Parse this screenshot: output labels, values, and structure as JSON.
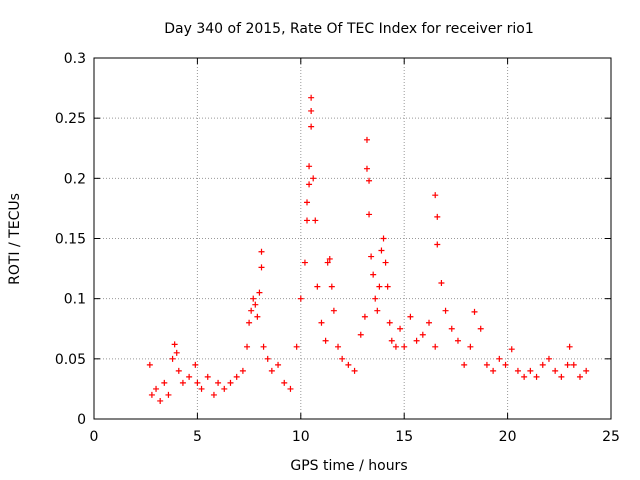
{
  "chart_data": {
    "type": "scatter",
    "title": "Day 340 of 2015, Rate Of TEC Index for receiver rio1",
    "xlabel": "GPS time / hours",
    "ylabel": "ROTI / TECUs",
    "xlim": [
      0,
      25
    ],
    "ylim": [
      0,
      0.3
    ],
    "xticks": [
      "0",
      "5",
      "10",
      "15",
      "20",
      "25"
    ],
    "yticks": [
      "0",
      "0.05",
      "0.1",
      "0.15",
      "0.2",
      "0.25",
      "0.3"
    ],
    "grid": true,
    "marker": "+",
    "color": "#ff0000",
    "series": [
      {
        "x": [
          2.7,
          2.8,
          3.0,
          3.2,
          3.4,
          3.6,
          3.8,
          3.9,
          4.0,
          4.1,
          4.3,
          4.6,
          4.9,
          5.0,
          5.2,
          5.5,
          5.8,
          6.0,
          6.3,
          6.6,
          6.9,
          7.2,
          7.4,
          7.5,
          7.6,
          7.7,
          7.8,
          7.9,
          8.0,
          8.1,
          8.1,
          8.2,
          8.4,
          8.6,
          8.9,
          9.2,
          9.5,
          9.8,
          10.0,
          10.2,
          10.3,
          10.3,
          10.4,
          10.4,
          10.5,
          10.5,
          10.5,
          10.6,
          10.7,
          10.8,
          11.0,
          11.2,
          11.3,
          11.4,
          11.5,
          11.6,
          11.8,
          12.0,
          12.3,
          12.6,
          12.9,
          13.1,
          13.2,
          13.2,
          13.3,
          13.3,
          13.4,
          13.5,
          13.6,
          13.7,
          13.8,
          13.9,
          14.0,
          14.1,
          14.2,
          14.3,
          14.4,
          14.6,
          14.8,
          15.0,
          15.3,
          15.6,
          15.9,
          16.2,
          16.5,
          16.5,
          16.6,
          16.6,
          16.8,
          17.0,
          17.3,
          17.6,
          17.9,
          18.2,
          18.4,
          18.7,
          19.0,
          19.3,
          19.6,
          19.9,
          20.2,
          20.5,
          20.8,
          21.1,
          21.4,
          21.7,
          22.0,
          22.3,
          22.6,
          22.9,
          23.0,
          23.2,
          23.5,
          23.8
        ],
        "y": [
          0.045,
          0.02,
          0.025,
          0.015,
          0.03,
          0.02,
          0.05,
          0.062,
          0.055,
          0.04,
          0.03,
          0.035,
          0.045,
          0.03,
          0.025,
          0.035,
          0.02,
          0.03,
          0.025,
          0.03,
          0.035,
          0.04,
          0.06,
          0.08,
          0.09,
          0.1,
          0.095,
          0.085,
          0.105,
          0.139,
          0.126,
          0.06,
          0.05,
          0.04,
          0.045,
          0.03,
          0.025,
          0.06,
          0.1,
          0.13,
          0.165,
          0.18,
          0.195,
          0.21,
          0.267,
          0.256,
          0.243,
          0.2,
          0.165,
          0.11,
          0.08,
          0.065,
          0.13,
          0.133,
          0.11,
          0.09,
          0.06,
          0.05,
          0.045,
          0.04,
          0.07,
          0.085,
          0.232,
          0.208,
          0.198,
          0.17,
          0.135,
          0.12,
          0.1,
          0.09,
          0.11,
          0.14,
          0.15,
          0.13,
          0.11,
          0.08,
          0.065,
          0.06,
          0.075,
          0.06,
          0.085,
          0.065,
          0.07,
          0.08,
          0.06,
          0.186,
          0.168,
          0.145,
          0.113,
          0.09,
          0.075,
          0.065,
          0.045,
          0.06,
          0.089,
          0.075,
          0.045,
          0.04,
          0.05,
          0.045,
          0.058,
          0.04,
          0.035,
          0.04,
          0.035,
          0.045,
          0.05,
          0.04,
          0.035,
          0.045,
          0.06,
          0.045,
          0.035,
          0.04
        ]
      }
    ]
  }
}
